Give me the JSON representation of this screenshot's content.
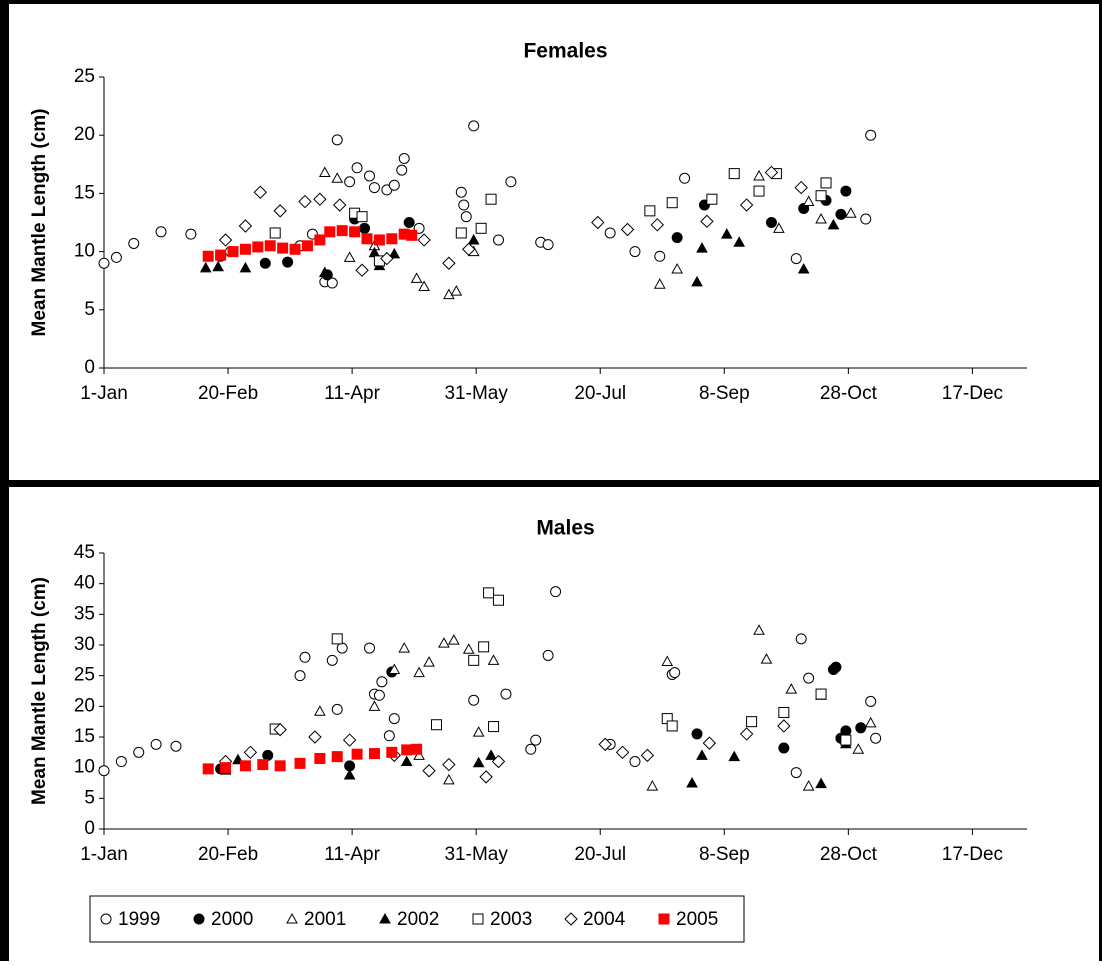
{
  "chart_data": [
    {
      "type": "scatter",
      "title": "Females",
      "y_label": "Mean Mantle Length (cm)",
      "xlim": [
        1,
        373
      ],
      "ylim": [
        0,
        25
      ],
      "yticks": [
        0,
        5,
        10,
        15,
        20,
        25
      ],
      "xticks": [
        {
          "value": 1,
          "label": "1-Jan"
        },
        {
          "value": 51,
          "label": "20-Feb"
        },
        {
          "value": 101,
          "label": "11-Apr"
        },
        {
          "value": 151,
          "label": "31-May"
        },
        {
          "value": 201,
          "label": "20-Jul"
        },
        {
          "value": 251,
          "label": "8-Sep"
        },
        {
          "value": 301,
          "label": "28-Oct"
        },
        {
          "value": 351,
          "label": "17-Dec"
        }
      ],
      "series": [
        {
          "marker": "circle-open",
          "color": "#000000",
          "x": [
            1,
            6,
            13,
            24,
            36,
            52,
            80,
            85,
            90,
            93,
            95,
            100,
            103,
            108,
            110,
            115,
            118,
            121,
            122,
            128,
            145,
            146,
            147,
            150,
            160,
            165,
            177,
            180,
            205,
            215,
            225,
            235,
            280,
            308,
            310
          ],
          "values": [
            9,
            9.5,
            10.7,
            11.7,
            11.5,
            10,
            10.5,
            11.5,
            7.4,
            7.3,
            19.6,
            16,
            17.2,
            16.5,
            15.5,
            15.3,
            15.7,
            17,
            18,
            12,
            15.1,
            14,
            13,
            20.8,
            11,
            16,
            10.8,
            10.6,
            11.6,
            10,
            9.6,
            16.3,
            9.4,
            12.8,
            20
          ]
        },
        {
          "marker": "circle-filled",
          "color": "#000000",
          "x": [
            48,
            66,
            75,
            91,
            102,
            106,
            124,
            232,
            243,
            270,
            283,
            292,
            298,
            300
          ],
          "values": [
            9.6,
            9,
            9.1,
            8,
            12.8,
            12,
            12.5,
            11.2,
            14,
            12.5,
            13.7,
            14.4,
            13.2,
            15.2
          ]
        },
        {
          "marker": "triangle-open",
          "color": "#000000",
          "x": [
            90,
            95,
            100,
            110,
            127,
            130,
            140,
            143,
            150,
            225,
            232,
            265,
            273,
            285,
            290,
            302
          ],
          "values": [
            16.8,
            16.3,
            9.5,
            10.5,
            7.7,
            7,
            6.3,
            6.6,
            10,
            7.2,
            8.5,
            16.5,
            12,
            14.3,
            12.8,
            13.3
          ]
        },
        {
          "marker": "triangle-filled",
          "color": "#000000",
          "x": [
            42,
            47,
            58,
            90,
            110,
            112,
            118,
            150,
            240,
            242,
            252,
            257,
            283,
            295
          ],
          "values": [
            8.6,
            8.7,
            8.6,
            8.2,
            9.9,
            8.8,
            9.8,
            11,
            7.4,
            10.3,
            11.5,
            10.8,
            8.5,
            12.3
          ]
        },
        {
          "marker": "square-open",
          "color": "#000000",
          "x": [
            70,
            102,
            105,
            112,
            145,
            153,
            157,
            221,
            230,
            246,
            255,
            265,
            272,
            290,
            292
          ],
          "values": [
            11.6,
            13.3,
            13,
            9.2,
            11.6,
            12,
            14.5,
            13.5,
            14.2,
            14.5,
            16.7,
            15.2,
            16.7,
            14.8,
            15.9
          ]
        },
        {
          "marker": "diamond-open",
          "color": "#000000",
          "x": [
            50,
            58,
            64,
            72,
            82,
            88,
            96,
            105,
            115,
            130,
            140,
            148,
            200,
            212,
            224,
            244,
            260,
            270,
            282
          ],
          "values": [
            11,
            12.2,
            15.1,
            13.5,
            14.3,
            14.5,
            14,
            8.4,
            9.4,
            11,
            9,
            10.2,
            12.5,
            11.9,
            12.3,
            12.6,
            14,
            16.8,
            15.5
          ]
        },
        {
          "marker": "square-filled",
          "color": "#ff0000",
          "x": [
            43,
            48,
            53,
            58,
            63,
            68,
            73,
            78,
            83,
            88,
            92,
            97,
            102,
            107,
            112,
            117,
            122,
            125
          ],
          "values": [
            9.6,
            9.7,
            10,
            10.2,
            10.4,
            10.5,
            10.3,
            10.2,
            10.5,
            11,
            11.7,
            11.8,
            11.7,
            11.1,
            11,
            11.1,
            11.5,
            11.4
          ]
        }
      ]
    },
    {
      "type": "scatter",
      "title": "Males",
      "y_label": "Mean Mantle Length (cm)",
      "xlim": [
        1,
        373
      ],
      "ylim": [
        0,
        45
      ],
      "yticks": [
        0,
        5,
        10,
        15,
        20,
        25,
        30,
        35,
        40,
        45
      ],
      "xticks": [
        {
          "value": 1,
          "label": "1-Jan"
        },
        {
          "value": 51,
          "label": "20-Feb"
        },
        {
          "value": 101,
          "label": "11-Apr"
        },
        {
          "value": 151,
          "label": "31-May"
        },
        {
          "value": 201,
          "label": "20-Jul"
        },
        {
          "value": 251,
          "label": "8-Sep"
        },
        {
          "value": 301,
          "label": "28-Oct"
        },
        {
          "value": 351,
          "label": "17-Dec"
        }
      ],
      "series": [
        {
          "name": "1999",
          "marker": "circle-open",
          "color": "#000000",
          "x": [
            1,
            8,
            15,
            22,
            30,
            80,
            82,
            93,
            95,
            97,
            108,
            110,
            112,
            113,
            116,
            118,
            150,
            163,
            173,
            175,
            180,
            183,
            205,
            215,
            230,
            231,
            280,
            282,
            285,
            310,
            312
          ],
          "values": [
            9.5,
            11,
            12.5,
            13.8,
            13.5,
            25,
            28,
            27.5,
            19.5,
            29.5,
            29.5,
            22,
            21.8,
            24,
            15.2,
            18,
            21,
            22,
            13,
            14.5,
            28.3,
            38.7,
            13.8,
            11,
            25.2,
            25.5,
            9.2,
            31,
            24.6,
            20.8,
            14.8
          ]
        },
        {
          "name": "2000",
          "marker": "circle-filled",
          "color": "#000000",
          "x": [
            48,
            67,
            100,
            117,
            240,
            275,
            295,
            296,
            298,
            300,
            306
          ],
          "values": [
            9.8,
            12,
            10.3,
            25.6,
            15.5,
            13.2,
            26,
            26.4,
            14.8,
            16,
            16.5
          ]
        },
        {
          "name": "2001",
          "marker": "triangle-open",
          "color": "#000000",
          "x": [
            88,
            110,
            118,
            122,
            128,
            128,
            132,
            138,
            140,
            142,
            148,
            152,
            158,
            222,
            228,
            265,
            268,
            278,
            285,
            290,
            305,
            310
          ],
          "values": [
            19.2,
            20,
            26,
            29.5,
            25.5,
            12,
            27.2,
            30.3,
            8,
            30.8,
            29.3,
            15.8,
            27.5,
            7,
            27.3,
            32.4,
            27.7,
            22.8,
            7,
            21.8,
            13,
            17.3
          ]
        },
        {
          "name": "2002",
          "marker": "triangle-filled",
          "color": "#000000",
          "x": [
            50,
            55,
            100,
            123,
            152,
            157,
            238,
            242,
            255,
            290,
            300
          ],
          "values": [
            9.6,
            11.3,
            8.8,
            11,
            10.8,
            12,
            7.5,
            12,
            11.8,
            7.4,
            13.9
          ]
        },
        {
          "name": "2003",
          "marker": "square-open",
          "color": "#000000",
          "x": [
            70,
            95,
            135,
            150,
            154,
            156,
            158,
            160,
            228,
            230,
            262,
            275,
            290,
            300
          ],
          "values": [
            16.3,
            31,
            17,
            27.5,
            29.7,
            38.5,
            16.7,
            37.3,
            18,
            16.8,
            17.5,
            19,
            22,
            14.5
          ]
        },
        {
          "name": "2004",
          "marker": "diamond-open",
          "color": "#000000",
          "x": [
            50,
            60,
            72,
            86,
            100,
            118,
            132,
            140,
            155,
            160,
            203,
            210,
            220,
            245,
            260,
            275
          ],
          "values": [
            11,
            12.5,
            16.2,
            15,
            14.5,
            12,
            9.5,
            10.5,
            8.5,
            11,
            13.8,
            12.5,
            12,
            14,
            15.5,
            16.8
          ]
        },
        {
          "name": "2005",
          "marker": "square-filled",
          "color": "#ff0000",
          "x": [
            43,
            50,
            58,
            65,
            72,
            80,
            88,
            95,
            103,
            110,
            117,
            123,
            127
          ],
          "values": [
            9.8,
            10,
            10.3,
            10.5,
            10.3,
            10.7,
            11.5,
            11.8,
            12.2,
            12.3,
            12.5,
            12.9,
            13
          ]
        }
      ]
    }
  ]
}
